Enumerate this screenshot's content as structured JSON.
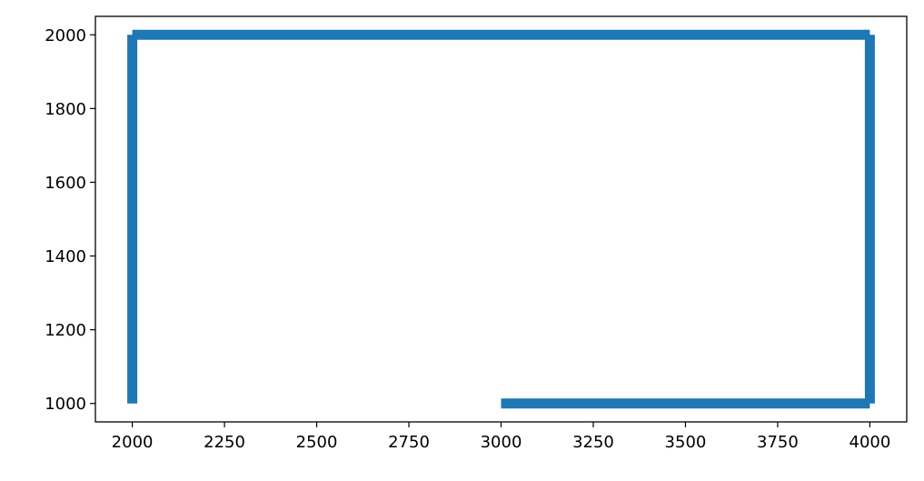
{
  "chart_data": {
    "type": "line",
    "title": "",
    "xlabel": "",
    "ylabel": "",
    "xlim": [
      1900,
      4100
    ],
    "ylim": [
      950,
      2050
    ],
    "grid": false,
    "color": "#1f77b4",
    "xticks": [
      2000,
      2250,
      2500,
      2750,
      3000,
      3250,
      3500,
      3750,
      4000
    ],
    "yticks": [
      1000,
      1200,
      1400,
      1600,
      1800,
      2000
    ],
    "xtick_labels": [
      "2000",
      "2250",
      "2500",
      "2750",
      "3000",
      "3250",
      "3500",
      "3750",
      "4000"
    ],
    "ytick_labels": [
      "1000",
      "1200",
      "1400",
      "1600",
      "1800",
      "2000"
    ],
    "segments": [
      {
        "x": [
          2000,
          2000
        ],
        "y": [
          1000,
          2000
        ]
      },
      {
        "x": [
          2000,
          3000
        ],
        "y": [
          2000,
          2000
        ]
      },
      {
        "x": [
          3000,
          4000
        ],
        "y": [
          2000,
          2000
        ]
      },
      {
        "x": [
          4000,
          4000
        ],
        "y": [
          2000,
          1000
        ]
      },
      {
        "x": [
          4000,
          3000
        ],
        "y": [
          1000,
          1000
        ]
      }
    ]
  }
}
